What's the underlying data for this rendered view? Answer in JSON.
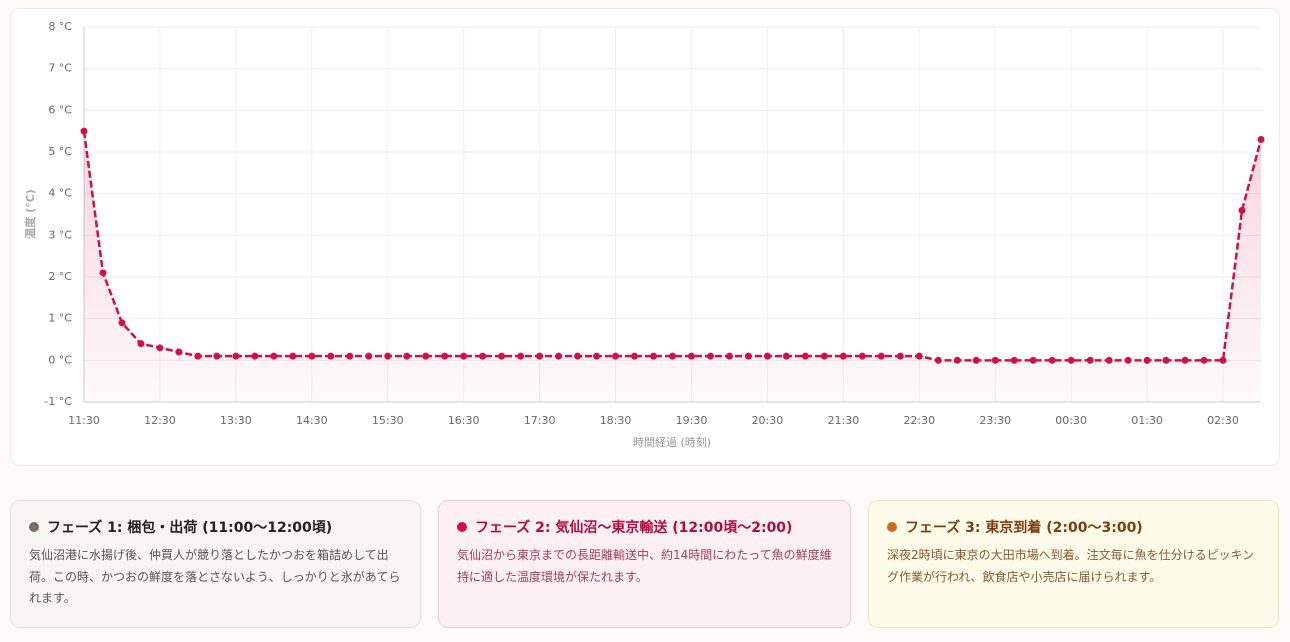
{
  "chart_data": {
    "type": "line",
    "ylabel": "温度 (°C)",
    "xlabel": "時間経過 (時刻)",
    "categories": [
      "11:30",
      null,
      null,
      null,
      "12:30",
      null,
      null,
      null,
      "13:30",
      null,
      null,
      null,
      "14:30",
      null,
      null,
      null,
      "15:30",
      null,
      null,
      null,
      "16:30",
      null,
      null,
      null,
      "17:30",
      null,
      null,
      null,
      "18:30",
      null,
      null,
      null,
      "19:30",
      null,
      null,
      null,
      "20:30",
      null,
      null,
      null,
      "21:30",
      null,
      null,
      null,
      "22:30",
      null,
      null,
      null,
      "23:30",
      null,
      null,
      null,
      "00:30",
      null,
      null,
      null,
      "01:30",
      null,
      null,
      null,
      "02:30",
      null,
      null
    ],
    "values": [
      5.5,
      2.1,
      0.9,
      0.4,
      0.3,
      0.2,
      0.1,
      0.1,
      0.1,
      0.1,
      0.1,
      0.1,
      0.1,
      0.1,
      0.1,
      0.1,
      0.1,
      0.1,
      0.1,
      0.1,
      0.1,
      0.1,
      0.1,
      0.1,
      0.1,
      0.1,
      0.1,
      0.1,
      0.1,
      0.1,
      0.1,
      0.1,
      0.1,
      0.1,
      0.1,
      0.1,
      0.1,
      0.1,
      0.1,
      0.1,
      0.1,
      0.1,
      0.1,
      0.1,
      0.1,
      0.0,
      0.0,
      0.0,
      0.0,
      0.0,
      0.0,
      0.0,
      0.0,
      0.0,
      0.0,
      0.0,
      0.0,
      0.0,
      0.0,
      0.0,
      0.0,
      3.6,
      5.3
    ],
    "color": "#d0104c",
    "ylim": [
      -1,
      8
    ],
    "yticks": [
      {
        "value": -1,
        "label": "-1 °C"
      },
      {
        "value": 0,
        "label": "0 °C"
      },
      {
        "value": 1,
        "label": "1 °C"
      },
      {
        "value": 2,
        "label": "2 °C"
      },
      {
        "value": 3,
        "label": "3 °C"
      },
      {
        "value": 4,
        "label": "4 °C"
      },
      {
        "value": 5,
        "label": "5 °C"
      },
      {
        "value": 6,
        "label": "6 °C"
      },
      {
        "value": 7,
        "label": "7 °C"
      },
      {
        "value": 8,
        "label": "8 °C"
      }
    ],
    "grid": true
  },
  "phases": [
    {
      "title": "フェーズ 1: 梱包・出荷 (11:00〜12:00頃)",
      "text": "気仙沼港に水揚げ後、仲買人が競り落としたかつおを箱詰めして出荷。この時、かつおの鮮度を落とさないよう、しっかりと氷があてられます。",
      "color": "#7a6a60"
    },
    {
      "title": "フェーズ 2: 気仙沼〜東京輸送 (12:00頃〜2:00)",
      "text": "気仙沼から東京までの長距離輸送中、約14時間にわたって魚の鮮度維持に適した温度環境が保たれます。",
      "color": "#d0104c"
    },
    {
      "title": "フェーズ 3: 東京到着 (2:00〜3:00)",
      "text": "深夜2時頃に東京の大田市場へ到着。注文毎に魚を仕分けるピッキング作業が行われ、飲食店や小売店に届けられます。",
      "color": "#d2691e"
    }
  ]
}
